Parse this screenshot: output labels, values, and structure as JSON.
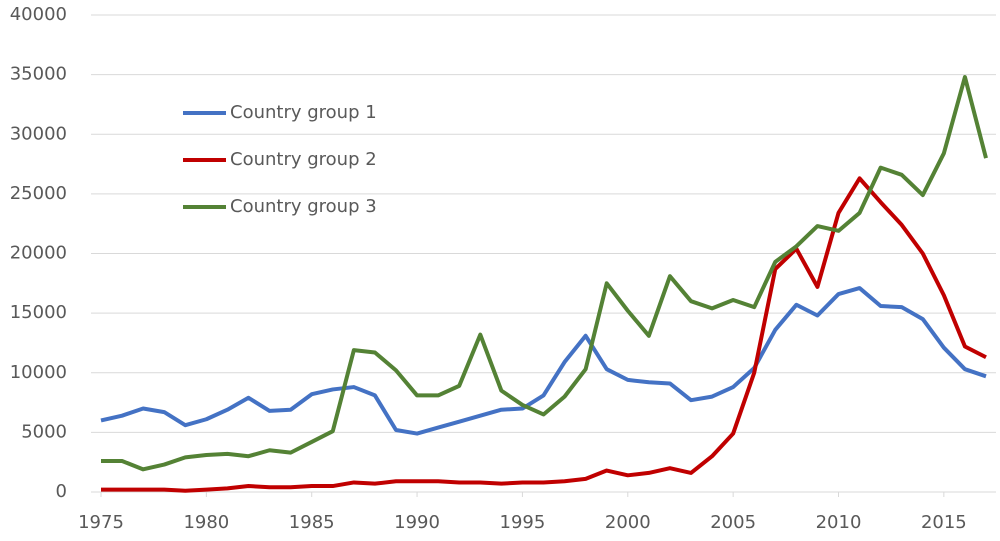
{
  "chart_data": {
    "type": "line",
    "x": [
      1975,
      1976,
      1977,
      1978,
      1979,
      1980,
      1981,
      1982,
      1983,
      1984,
      1985,
      1986,
      1987,
      1988,
      1989,
      1990,
      1991,
      1992,
      1993,
      1994,
      1995,
      1996,
      1997,
      1998,
      1999,
      2000,
      2001,
      2002,
      2003,
      2004,
      2005,
      2006,
      2007,
      2008,
      2009,
      2010,
      2011,
      2012,
      2013,
      2014,
      2015,
      2016,
      2017
    ],
    "series": [
      {
        "name": "Country group 1",
        "color": "#4472c4",
        "values": [
          6000,
          6400,
          7000,
          6700,
          5600,
          6100,
          6900,
          7900,
          6800,
          6900,
          8200,
          8600,
          8800,
          8100,
          5200,
          4900,
          5400,
          5900,
          6400,
          6900,
          7000,
          8100,
          10900,
          13100,
          10300,
          9400,
          9200,
          9100,
          7700,
          8000,
          8800,
          10400,
          13600,
          15700,
          14800,
          16600,
          17100,
          15600,
          15500,
          14500,
          12100,
          10300,
          9700
        ]
      },
      {
        "name": "Country group 2",
        "color": "#c00000",
        "values": [
          200,
          200,
          200,
          200,
          100,
          200,
          300,
          500,
          400,
          400,
          500,
          500,
          800,
          700,
          900,
          900,
          900,
          800,
          800,
          700,
          800,
          800,
          900,
          1100,
          1800,
          1400,
          1600,
          2000,
          1600,
          3000,
          4900,
          10000,
          18700,
          20400,
          17200,
          23400,
          26300,
          24300,
          22400,
          20000,
          16500,
          12200,
          11300
        ]
      },
      {
        "name": "Country group 3",
        "color": "#548235",
        "values": [
          2600,
          2600,
          1900,
          2300,
          2900,
          3100,
          3200,
          3000,
          3500,
          3300,
          4200,
          5100,
          11900,
          11700,
          10200,
          8100,
          8100,
          8900,
          13200,
          8500,
          7300,
          6500,
          8000,
          10300,
          17500,
          15200,
          13100,
          18100,
          16000,
          15400,
          16100,
          15500,
          19300,
          20600,
          22300,
          21900,
          23400,
          27200,
          26600,
          24900,
          28400,
          34800,
          28000
        ]
      }
    ],
    "xlim": [
      1975,
      2017
    ],
    "xticks": [
      1975,
      1980,
      1985,
      1990,
      1995,
      2000,
      2005,
      2010,
      2015
    ],
    "ylim": [
      0,
      40000
    ],
    "yticks": [
      0,
      5000,
      10000,
      15000,
      20000,
      25000,
      30000,
      35000,
      40000
    ],
    "grid": true,
    "legend": "upper-left"
  }
}
